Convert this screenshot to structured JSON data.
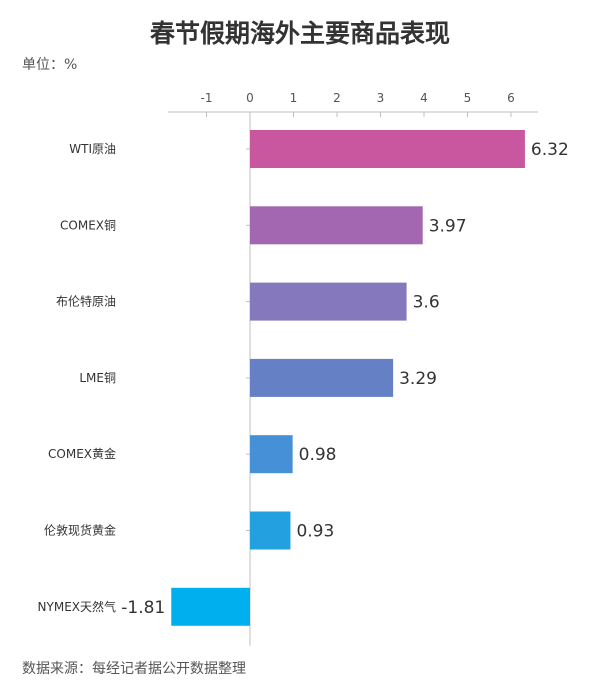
{
  "title": "春节假期海外主要商品表现",
  "unit_label": "单位：%",
  "source": "数据来源：每经记者据公开数据整理",
  "chart_data": {
    "type": "bar",
    "orientation": "horizontal",
    "title": "春节假期海外主要商品表现",
    "xlabel": "",
    "ylabel": "",
    "xlim": [
      -1.8,
      6.5
    ],
    "ticks": [
      -1,
      0,
      1,
      2,
      3,
      4,
      5,
      6
    ],
    "tick_labels": [
      "-1",
      "0",
      "1",
      "2",
      "3",
      "4",
      "5",
      "6"
    ],
    "axis_position": "top",
    "grid": false,
    "categories": [
      "WTI原油",
      "COMEX铜",
      "布伦特原油",
      "LME铜",
      "COMEX黄金",
      "伦敦现货黄金",
      "NYMEX天然气"
    ],
    "values": [
      6.32,
      3.97,
      3.6,
      3.29,
      0.98,
      0.93,
      -1.81
    ],
    "value_labels": [
      "6.32",
      "3.97",
      "3.6",
      "3.29",
      "0.98",
      "0.93",
      "-1.81"
    ],
    "colors": [
      "#c9579f",
      "#a366b0",
      "#8578bd",
      "#6680c6",
      "#4590d6",
      "#23a0e0",
      "#00b0ee"
    ]
  }
}
